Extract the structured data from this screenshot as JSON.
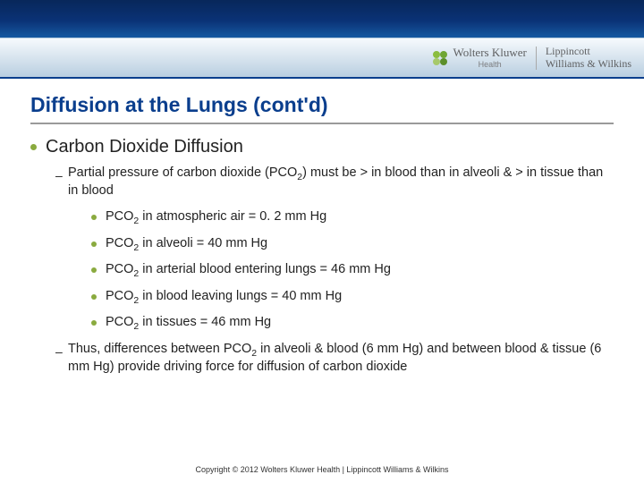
{
  "brand": {
    "wk_name": "Wolters Kluwer",
    "wk_sub": "Health",
    "lww_line1": "Lippincott",
    "lww_line2": "Williams & Wilkins"
  },
  "title": "Diffusion at the Lungs (cont'd)",
  "heading": "Carbon Dioxide Diffusion",
  "sub1_a": "Partial pressure of carbon dioxide (PCO",
  "sub1_b": ") must be > in blood than in alveoli & > in  tissue than in blood",
  "b1_a": "PCO",
  "b1_b": " in atmospheric air = 0. 2 mm Hg",
  "b2_a": "PCO",
  "b2_b": " in alveoli = 40 mm Hg",
  "b3_a": "PCO",
  "b3_b": " in arterial blood entering lungs = 46 mm Hg",
  "b4_a": "PCO",
  "b4_b": " in blood leaving lungs = 40 mm Hg",
  "b5_a": "PCO",
  "b5_b": " in tissues = 46 mm Hg",
  "sub2_a": "Thus, differences between PCO",
  "sub2_b": " in alveoli & blood (6 mm Hg) and between blood & tissue (6 mm Hg) provide driving force for diffusion of carbon dioxide",
  "sub_two": "2",
  "footer": "Copyright © 2012 Wolters Kluwer Health | Lippincott Williams & Wilkins"
}
